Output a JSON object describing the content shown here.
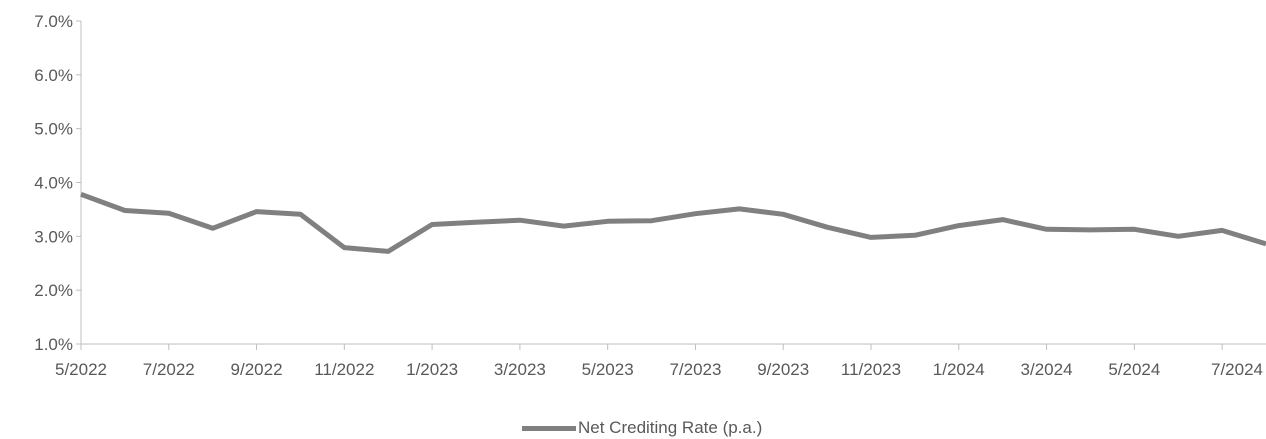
{
  "chart_data": {
    "type": "line",
    "title": "",
    "xlabel": "",
    "ylabel": "",
    "ylim": [
      0.01,
      0.07
    ],
    "y_ticks": [
      "1.0%",
      "2.0%",
      "3.0%",
      "4.0%",
      "5.0%",
      "6.0%",
      "7.0%"
    ],
    "x_tick_labels": [
      "5/2022",
      "7/2022",
      "9/2022",
      "11/2022",
      "1/2023",
      "3/2023",
      "5/2023",
      "7/2023",
      "9/2023",
      "11/2023",
      "1/2024",
      "3/2024",
      "5/2024",
      "7/2024"
    ],
    "x": [
      "5/2022",
      "6/2022",
      "7/2022",
      "8/2022",
      "9/2022",
      "10/2022",
      "11/2022",
      "12/2022",
      "1/2023",
      "2/2023",
      "3/2023",
      "4/2023",
      "5/2023",
      "6/2023",
      "7/2023",
      "8/2023",
      "9/2023",
      "10/2023",
      "11/2023",
      "12/2023",
      "1/2024",
      "2/2024",
      "3/2024",
      "4/2024",
      "5/2024",
      "6/2024",
      "7/2024",
      "8/2024"
    ],
    "series": [
      {
        "name": "Net Crediting Rate (p.a.)",
        "color": "#808080",
        "values": [
          0.0378,
          0.0348,
          0.0343,
          0.0315,
          0.0346,
          0.0341,
          0.0279,
          0.0272,
          0.0322,
          0.0326,
          0.033,
          0.0319,
          0.0328,
          0.0329,
          0.0342,
          0.0351,
          0.0341,
          0.0317,
          0.0298,
          0.0302,
          0.032,
          0.0331,
          0.0313,
          0.0312,
          0.0313,
          0.03,
          0.0311,
          0.0286
        ]
      }
    ],
    "grid": false,
    "legend": "bottom-center"
  }
}
